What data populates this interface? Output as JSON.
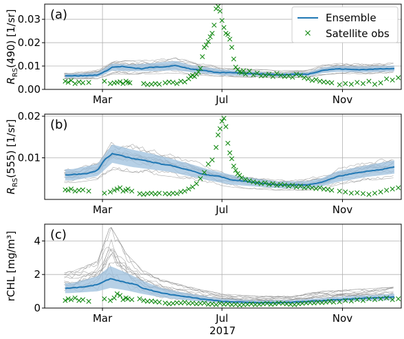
{
  "figure": {
    "year_label": "2017",
    "month_ticks": [
      "Mar",
      "Jul",
      "Nov"
    ]
  },
  "legend": {
    "ensemble_label": "Ensemble",
    "obs_label": "Satellite obs"
  },
  "colors": {
    "ensemble": "#1f77b4",
    "band": "#9ec0dd",
    "members": "#8a8a8a",
    "obs": "#138a13",
    "grid": "#b0b0b0"
  },
  "chart_data": [
    {
      "type": "line",
      "panel_label": "(a)",
      "ylabel": "R_RS(490) [1/sr]",
      "ylabel_main": "R",
      "ylabel_sub": "RS",
      "ylabel_rest": "(490) [1/sr]",
      "x_unit": "day of year 2017",
      "xlim": [
        1,
        365
      ],
      "ylim": [
        0,
        0.0365
      ],
      "yticks": [
        0.0,
        0.01,
        0.02,
        0.03
      ],
      "ytick_labels": [
        "0.00",
        "0.01",
        "0.02",
        "0.03"
      ],
      "grid": true,
      "legend_position": "top-right",
      "ensemble_mean": {
        "x": [
          1,
          15,
          30,
          45,
          55,
          60,
          70,
          80,
          90,
          100,
          110,
          120,
          135,
          150,
          165,
          175,
          182,
          195,
          210,
          225,
          240,
          255,
          270,
          285,
          300,
          315,
          330,
          345,
          358
        ],
        "y": [
          0.0058,
          0.006,
          0.0058,
          0.0059,
          0.0062,
          0.007,
          0.0095,
          0.0098,
          0.0092,
          0.0088,
          0.0095,
          0.0095,
          0.0102,
          0.0088,
          0.008,
          0.0072,
          0.0072,
          0.0072,
          0.0068,
          0.0065,
          0.0062,
          0.0065,
          0.0065,
          0.0082,
          0.0088,
          0.0085,
          0.0085,
          0.0088,
          0.009
        ]
      },
      "ensemble_spread": {
        "x": [
          1,
          30,
          55,
          70,
          90,
          110,
          135,
          150,
          182,
          210,
          240,
          270,
          285,
          300,
          330,
          358
        ],
        "lower": [
          0.0048,
          0.005,
          0.0052,
          0.008,
          0.0078,
          0.0078,
          0.0082,
          0.0074,
          0.006,
          0.0058,
          0.0054,
          0.0056,
          0.007,
          0.0075,
          0.0073,
          0.0078
        ],
        "upper": [
          0.0068,
          0.0067,
          0.0073,
          0.011,
          0.0106,
          0.0112,
          0.0122,
          0.0104,
          0.0085,
          0.0078,
          0.007,
          0.0074,
          0.0094,
          0.01,
          0.0098,
          0.0102
        ]
      },
      "members_range": {
        "x": [
          1,
          30,
          55,
          70,
          90,
          110,
          135,
          150,
          182,
          210,
          240,
          270,
          285,
          300,
          330,
          358
        ],
        "lower": [
          0.0045,
          0.0045,
          0.0045,
          0.0065,
          0.0065,
          0.0066,
          0.007,
          0.0064,
          0.0055,
          0.0052,
          0.005,
          0.0052,
          0.0062,
          0.0068,
          0.0066,
          0.007
        ],
        "upper": [
          0.0072,
          0.0072,
          0.0085,
          0.0125,
          0.0122,
          0.0128,
          0.0138,
          0.012,
          0.0095,
          0.0088,
          0.008,
          0.0082,
          0.0105,
          0.0112,
          0.011,
          0.0115
        ]
      },
      "member_count": 12,
      "observations": {
        "x": [
          2,
          5,
          8,
          12,
          16,
          20,
          26,
          42,
          48,
          52,
          55,
          58,
          61,
          64,
          66,
          68,
          82,
          86,
          90,
          94,
          98,
          104,
          108,
          112,
          116,
          120,
          124,
          128,
          130,
          132,
          134,
          136,
          138,
          140,
          142,
          144,
          146,
          148,
          150,
          152,
          154,
          156,
          158,
          160,
          162,
          164,
          166,
          168,
          170,
          172,
          174,
          176,
          178,
          180,
          182,
          184,
          186,
          190,
          194,
          198,
          202,
          206,
          210,
          214,
          218,
          222,
          226,
          230,
          234,
          238,
          242,
          246,
          250,
          254,
          258,
          262,
          266,
          270,
          274,
          282,
          288,
          294,
          300,
          306,
          312,
          318,
          324,
          330,
          336,
          342,
          348,
          354,
          358
        ],
        "y": [
          0.0035,
          0.003,
          0.0038,
          0.0025,
          0.0032,
          0.0028,
          0.003,
          0.0035,
          0.0025,
          0.0028,
          0.003,
          0.0033,
          0.0025,
          0.0035,
          0.003,
          0.0028,
          0.0025,
          0.002,
          0.0022,
          0.0025,
          0.0022,
          0.0028,
          0.0032,
          0.003,
          0.0025,
          0.0035,
          0.0032,
          0.0045,
          0.0055,
          0.006,
          0.0055,
          0.0065,
          0.0075,
          0.009,
          0.014,
          0.018,
          0.019,
          0.0205,
          0.0225,
          0.024,
          0.0275,
          0.0345,
          0.0355,
          0.0335,
          0.0295,
          0.0265,
          0.024,
          0.0235,
          0.0215,
          0.018,
          0.013,
          0.0095,
          0.0085,
          0.0075,
          0.0072,
          0.008,
          0.0065,
          0.0078,
          0.0062,
          0.007,
          0.0058,
          0.006,
          0.0065,
          0.0055,
          0.0068,
          0.006,
          0.0055,
          0.0058,
          0.0052,
          0.0065,
          0.006,
          0.005,
          0.0045,
          0.0038,
          0.0042,
          0.0035,
          0.0032,
          0.003,
          0.0028,
          0.002,
          0.0025,
          0.0022,
          0.003,
          0.0025,
          0.0035,
          0.0022,
          0.0028,
          0.0045,
          0.004,
          0.005,
          0.0038,
          0.0045,
          0.004
        ]
      }
    },
    {
      "type": "line",
      "panel_label": "(b)",
      "ylabel": "R_RS(555) [1/sr]",
      "ylabel_main": "R",
      "ylabel_sub": "RS",
      "ylabel_rest": "(555) [1/sr]",
      "x_unit": "day of year 2017",
      "xlim": [
        1,
        365
      ],
      "ylim": [
        0.0,
        0.0205
      ],
      "yticks": [
        0.01,
        0.02
      ],
      "ytick_labels": [
        "0.01",
        "0.02"
      ],
      "grid": true,
      "ensemble_mean": {
        "x": [
          1,
          15,
          30,
          45,
          55,
          62,
          70,
          80,
          90,
          100,
          110,
          120,
          130,
          140,
          150,
          160,
          170,
          180,
          190,
          200,
          210,
          225,
          240,
          255,
          270,
          285,
          300,
          315,
          330,
          345,
          358
        ],
        "y": [
          0.0058,
          0.0058,
          0.006,
          0.0062,
          0.007,
          0.0095,
          0.011,
          0.0105,
          0.0098,
          0.0095,
          0.009,
          0.0085,
          0.0082,
          0.0075,
          0.007,
          0.0062,
          0.0058,
          0.0055,
          0.0048,
          0.0045,
          0.0042,
          0.0038,
          0.0035,
          0.0035,
          0.0035,
          0.0042,
          0.0055,
          0.0062,
          0.0068,
          0.0072,
          0.0078
        ]
      },
      "ensemble_spread": {
        "x": [
          1,
          30,
          55,
          70,
          90,
          110,
          130,
          150,
          170,
          190,
          210,
          240,
          270,
          285,
          300,
          330,
          358
        ],
        "lower": [
          0.0045,
          0.0046,
          0.0056,
          0.0088,
          0.0078,
          0.0072,
          0.0066,
          0.0055,
          0.0045,
          0.0036,
          0.0032,
          0.0027,
          0.0026,
          0.0032,
          0.0042,
          0.0054,
          0.0062
        ],
        "upper": [
          0.0071,
          0.0073,
          0.0085,
          0.0132,
          0.012,
          0.011,
          0.0098,
          0.0085,
          0.0071,
          0.006,
          0.0052,
          0.0043,
          0.0044,
          0.0052,
          0.0068,
          0.0082,
          0.0094
        ]
      },
      "members_range": {
        "x": [
          1,
          30,
          55,
          70,
          90,
          110,
          130,
          150,
          170,
          190,
          210,
          240,
          270,
          285,
          300,
          330,
          358
        ],
        "lower": [
          0.004,
          0.004,
          0.0048,
          0.0072,
          0.0065,
          0.006,
          0.0055,
          0.0046,
          0.0038,
          0.003,
          0.0026,
          0.0022,
          0.0022,
          0.0026,
          0.0035,
          0.0045,
          0.0052
        ],
        "upper": [
          0.0078,
          0.008,
          0.0095,
          0.0145,
          0.0135,
          0.0125,
          0.0112,
          0.0098,
          0.008,
          0.0068,
          0.006,
          0.005,
          0.0052,
          0.0062,
          0.008,
          0.0095,
          0.0108
        ]
      },
      "member_count": 12,
      "observations": {
        "x": [
          2,
          5,
          8,
          12,
          16,
          20,
          26,
          42,
          48,
          52,
          55,
          58,
          61,
          64,
          66,
          70,
          78,
          82,
          86,
          90,
          94,
          98,
          104,
          108,
          112,
          116,
          120,
          124,
          128,
          132,
          136,
          140,
          144,
          148,
          152,
          156,
          158,
          160,
          162,
          164,
          166,
          168,
          170,
          172,
          174,
          176,
          178,
          180,
          182,
          186,
          190,
          194,
          198,
          202,
          206,
          210,
          214,
          218,
          222,
          226,
          230,
          234,
          238,
          242,
          246,
          250,
          254,
          258,
          262,
          266,
          270,
          274,
          282,
          288,
          294,
          300,
          306,
          312,
          318,
          324,
          330,
          336,
          342,
          348,
          354,
          358
        ],
        "y": [
          0.0023,
          0.0022,
          0.0025,
          0.002,
          0.0022,
          0.0023,
          0.002,
          0.0015,
          0.0018,
          0.0022,
          0.0025,
          0.0028,
          0.002,
          0.0022,
          0.0025,
          0.002,
          0.0014,
          0.0012,
          0.0014,
          0.0015,
          0.0013,
          0.0015,
          0.0014,
          0.0013,
          0.0015,
          0.0014,
          0.0018,
          0.002,
          0.0025,
          0.003,
          0.0038,
          0.005,
          0.0065,
          0.0085,
          0.0095,
          0.0125,
          0.0155,
          0.017,
          0.0188,
          0.0195,
          0.0175,
          0.0135,
          0.0112,
          0.0098,
          0.008,
          0.007,
          0.0062,
          0.0058,
          0.0052,
          0.0048,
          0.0045,
          0.0042,
          0.004,
          0.0038,
          0.004,
          0.0036,
          0.0038,
          0.0034,
          0.0036,
          0.0035,
          0.0032,
          0.0034,
          0.003,
          0.0032,
          0.0028,
          0.003,
          0.0028,
          0.0026,
          0.0028,
          0.0025,
          0.0024,
          0.0022,
          0.002,
          0.0018,
          0.0015,
          0.0016,
          0.0014,
          0.0012,
          0.0015,
          0.0018,
          0.0022,
          0.0025,
          0.0028,
          0.003,
          0.0032,
          0.0028
        ]
      }
    },
    {
      "type": "line",
      "panel_label": "(c)",
      "ylabel": "rCHL [mg/m³]",
      "ylabel_main": "rCHL [mg/m³]",
      "ylabel_sub": "",
      "ylabel_rest": "",
      "x_unit": "day of year 2017",
      "xlim": [
        1,
        365
      ],
      "ylim": [
        0,
        5
      ],
      "yticks": [
        0,
        2,
        4
      ],
      "ytick_labels": [
        "0",
        "2",
        "4"
      ],
      "grid": true,
      "ensemble_mean": {
        "x": [
          1,
          15,
          30,
          45,
          55,
          62,
          68,
          75,
          85,
          95,
          100,
          110,
          120,
          130,
          140,
          150,
          160,
          170,
          182,
          200,
          220,
          240,
          255,
          270,
          285,
          300,
          315,
          330,
          345,
          358
        ],
        "y": [
          1.1,
          1.15,
          1.2,
          1.3,
          1.4,
          1.6,
          1.75,
          1.65,
          1.5,
          1.4,
          1.2,
          1.05,
          0.9,
          0.8,
          0.72,
          0.65,
          0.55,
          0.48,
          0.4,
          0.35,
          0.33,
          0.32,
          0.35,
          0.4,
          0.45,
          0.5,
          0.55,
          0.6,
          0.62,
          0.65
        ]
      },
      "ensemble_spread": {
        "x": [
          1,
          30,
          55,
          68,
          85,
          100,
          120,
          140,
          160,
          182,
          220,
          255,
          285,
          315,
          345,
          358
        ],
        "lower": [
          0.85,
          0.9,
          1.0,
          1.2,
          1.05,
          0.85,
          0.65,
          0.5,
          0.38,
          0.28,
          0.22,
          0.24,
          0.32,
          0.4,
          0.45,
          0.48
        ],
        "upper": [
          1.4,
          1.5,
          1.9,
          2.5,
          2.1,
          1.65,
          1.2,
          0.95,
          0.75,
          0.55,
          0.45,
          0.48,
          0.6,
          0.72,
          0.8,
          0.85
        ]
      },
      "members_range": {
        "x": [
          1,
          30,
          55,
          68,
          85,
          100,
          120,
          140,
          160,
          182,
          220,
          255,
          285,
          315,
          345,
          358
        ],
        "lower": [
          0.6,
          0.65,
          0.7,
          0.85,
          0.75,
          0.6,
          0.45,
          0.35,
          0.25,
          0.2,
          0.15,
          0.18,
          0.22,
          0.28,
          0.32,
          0.35
        ],
        "upper": [
          2.0,
          2.2,
          2.8,
          4.9,
          3.2,
          2.3,
          1.7,
          1.4,
          1.1,
          0.85,
          0.7,
          0.75,
          1.0,
          1.1,
          1.2,
          1.25
        ]
      },
      "member_count": 12,
      "observations": {
        "x": [
          2,
          5,
          8,
          12,
          16,
          20,
          26,
          42,
          48,
          52,
          55,
          58,
          61,
          64,
          66,
          70,
          78,
          82,
          86,
          90,
          94,
          98,
          104,
          108,
          112,
          116,
          120,
          124,
          128,
          132,
          136,
          140,
          144,
          148,
          152,
          156,
          160,
          164,
          168,
          172,
          176,
          180,
          184,
          188,
          192,
          196,
          200,
          204,
          208,
          212,
          216,
          220,
          224,
          228,
          232,
          236,
          240,
          244,
          248,
          252,
          256,
          260,
          264,
          268,
          272,
          276,
          282,
          288,
          294,
          300,
          306,
          312,
          318,
          324,
          330,
          336,
          342,
          348,
          354,
          358
        ],
        "y": [
          0.45,
          0.55,
          0.5,
          0.6,
          0.45,
          0.5,
          0.4,
          0.55,
          0.45,
          0.6,
          0.85,
          0.75,
          0.5,
          0.6,
          0.55,
          0.5,
          0.55,
          0.45,
          0.4,
          0.42,
          0.38,
          0.35,
          0.3,
          0.25,
          0.28,
          0.32,
          0.3,
          0.35,
          0.28,
          0.3,
          0.25,
          0.28,
          0.3,
          0.22,
          0.25,
          0.2,
          0.28,
          0.22,
          0.25,
          0.2,
          0.22,
          0.18,
          0.2,
          0.22,
          0.25,
          0.2,
          0.22,
          0.25,
          0.28,
          0.22,
          0.25,
          0.3,
          0.28,
          0.25,
          0.22,
          0.2,
          0.25,
          0.28,
          0.3,
          0.32,
          0.3,
          0.35,
          0.32,
          0.35,
          0.4,
          0.35,
          0.38,
          0.45,
          0.42,
          0.5,
          0.45,
          0.55,
          0.5,
          0.55,
          0.6,
          0.5,
          0.55,
          0.5,
          0.45,
          0.5
        ]
      }
    }
  ]
}
